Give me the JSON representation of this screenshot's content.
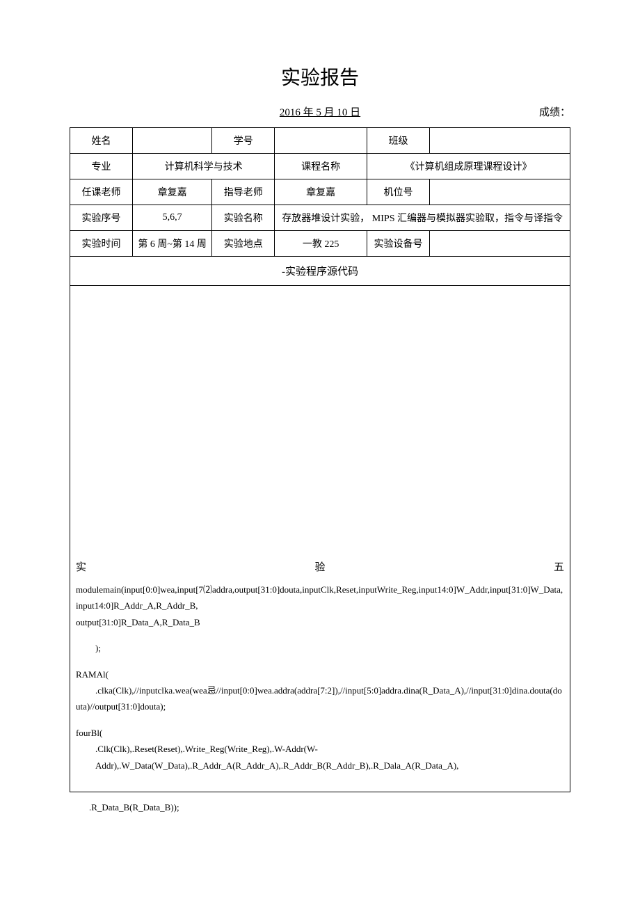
{
  "title": "实验报告",
  "date": "2016 年 5 月 10 日",
  "score_label": "成绩：",
  "table": {
    "row1": {
      "name_label": "姓名",
      "name_val": "",
      "id_label": "学号",
      "id_val": "",
      "class_label": "班级",
      "class_val": ""
    },
    "row2": {
      "major_label": "专业",
      "major_val": "计算机科学与技术",
      "course_label": "课程名称",
      "course_val": "《计算机组成原理课程设计》"
    },
    "row3": {
      "teacher_label": "任课老师",
      "teacher_val": "章复嘉",
      "advisor_label": "指导老师",
      "advisor_val": "章复嘉",
      "seat_label": "机位号",
      "seat_val": ""
    },
    "row4": {
      "expno_label": "实验序号",
      "expno_val": "5,6,7",
      "expname_label": "实验名称",
      "expname_val": "存放器堆设计实验，  MIPS 汇编器与模拟器实验取，指令与译指令"
    },
    "row5": {
      "time_label": "实验时间",
      "time_val": "第 6 周~第 14 周",
      "place_label": "实验地点",
      "place_val": "一教 225",
      "equip_label": "实验设备号",
      "equip_val": ""
    }
  },
  "section_header": "-实验程序源代码",
  "exp_line": {
    "left": "实",
    "mid": "验",
    "right": "五"
  },
  "code1": "modulemain(input[0:0]wea,input[7⑵addra,output[31:0]douta,inputClk,Reset,inputWrite_Reg,input14:0]W_Addr,input[31:0]W_Data,input14:0]R_Addr_A,R_Addr_B,",
  "code2": "output[31:0]R_Data_A,R_Data_B",
  "code3": ");",
  "code4": "RAMAl(",
  "code5": ".clka(Clk),//inputclka.wea(wea忌//input[0:0]wea.addra(addra[7:2]),//input[5:0]addra.dina(R_Data_A),//input[31:0]dina.douta(douta)//output[31:0]douta);",
  "code6": "fourBl(",
  "code7": ".Clk(Clk),.Reset(Reset),.Write_Reg(Write_Reg),.W-Addr(W-",
  "code8": "Addr),.W_Data(W_Data),.R_Addr_A(R_Addr_A),.R_Addr_B(R_Addr_B),.R_Dala_A(R_Data_A),",
  "footer": ".R_Data_B(R_Data_B));",
  "colors": {
    "text": "#000000",
    "border": "#000000",
    "bg": "#ffffff"
  }
}
